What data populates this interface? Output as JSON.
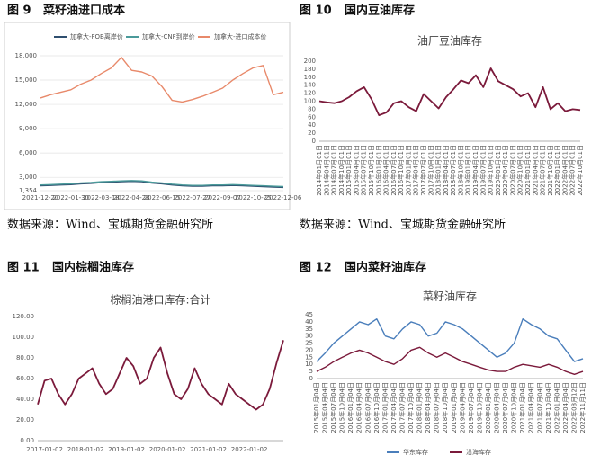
{
  "chart_data": [
    {
      "type": "line",
      "caption_number": "图 9",
      "caption": "菜籽油进口成本",
      "source": "数据来源：Wind、宝城期货金融研究所",
      "legend": "top",
      "grid": true,
      "frame": true,
      "categories": [
        "2021-12-20",
        null,
        null,
        "2022-01-30",
        null,
        null,
        "2022-03-18",
        null,
        null,
        "2022-04-28",
        null,
        null,
        "2022-06-15",
        null,
        null,
        "2022-07-27",
        null,
        null,
        "2022-09-07",
        null,
        null,
        "2022-10-25",
        null,
        null,
        "2022-12-06"
      ],
      "ylim": [
        1354,
        18000
      ],
      "yticks": [
        {
          "value": 1354,
          "label": "1,354"
        },
        {
          "value": 3000,
          "label": "3,000"
        },
        {
          "value": 6000,
          "label": "6,000"
        },
        {
          "value": 9000,
          "label": "9,000"
        },
        {
          "value": 12000,
          "label": "12,000"
        },
        {
          "value": 15000,
          "label": "15,000"
        },
        {
          "value": 18000,
          "label": "18,000"
        }
      ],
      "series": [
        {
          "name": "加拿大-FOB离岸价",
          "color": "#2f4f6f",
          "values": [
            1950,
            2000,
            2050,
            2100,
            2200,
            2250,
            2350,
            2400,
            2450,
            2500,
            2450,
            2300,
            2200,
            2050,
            1950,
            1900,
            1900,
            1950,
            1950,
            2000,
            1950,
            1900,
            1850,
            1800,
            1750
          ]
        },
        {
          "name": "加拿大-CNF到岸价",
          "color": "#4a9a9a",
          "values": [
            2050,
            2100,
            2150,
            2200,
            2300,
            2350,
            2450,
            2500,
            2550,
            2600,
            2550,
            2400,
            2300,
            2150,
            2050,
            2000,
            2000,
            2050,
            2050,
            2100,
            2050,
            2000,
            1950,
            1900,
            1850
          ]
        },
        {
          "name": "加拿大-进口成本价",
          "color": "#e8896a",
          "values": [
            12800,
            13200,
            13500,
            13800,
            14500,
            15000,
            15800,
            16500,
            17800,
            16200,
            16000,
            15500,
            14200,
            12500,
            12300,
            12600,
            13000,
            13500,
            14000,
            15000,
            15800,
            16500,
            16800,
            13200,
            13500
          ]
        }
      ]
    },
    {
      "type": "line",
      "caption_number": "图 10",
      "caption": "国内豆油库存",
      "source": "数据来源：Wind、宝城期货金融研究所",
      "title": "油厂豆油库存",
      "grid": false,
      "categories": [
        "2014年01月01日",
        "2014年04月01日",
        "2014年07月01日",
        "2014年10月01日",
        "2015年01月01日",
        "2015年04月01日",
        "2015年07月01日",
        "2015年10月01日",
        "2016年01月01日",
        "2016年04月01日",
        "2016年07月01日",
        "2016年10月01日",
        "2017年01月01日",
        "2017年04月01日",
        "2017年07月01日",
        "2017年10月01日",
        "2018年01月01日",
        "2018年04月01日",
        "2018年07月01日",
        "2018年10月01日",
        "2019年01月01日",
        "2019年04月01日",
        "2019年07月01日",
        "2019年10月01日",
        "2020年01月01日",
        "2020年04月01日",
        "2020年07月01日",
        "2020年10月01日",
        "2021年01月01日",
        "2021年04月01日",
        "2021年07月01日",
        "2021年10月01日",
        "2022年01月01日",
        "2022年04月01日",
        "2022年07月01日",
        "2022年10月01日"
      ],
      "ylim": [
        0,
        200
      ],
      "yticks": [
        0,
        20,
        40,
        60,
        80,
        100,
        120,
        140,
        160,
        180,
        200
      ],
      "series": [
        {
          "name": "油厂豆油库存",
          "color": "#7b1a3b",
          "values": [
            100,
            97,
            95,
            100,
            110,
            125,
            135,
            105,
            65,
            72,
            95,
            100,
            85,
            75,
            118,
            100,
            82,
            110,
            130,
            152,
            145,
            165,
            135,
            182,
            150,
            140,
            130,
            112,
            120,
            85,
            135,
            80,
            95,
            75,
            80,
            78
          ]
        }
      ]
    },
    {
      "type": "line",
      "caption_number": "图 11",
      "caption": "国内棕榈油库存",
      "title": "棕榈油港口库存:合计",
      "grid": false,
      "categories": [
        null,
        "2017-01-02",
        null,
        null,
        null,
        null,
        null,
        "2018-01-02",
        null,
        null,
        null,
        null,
        null,
        "2019-01-02",
        null,
        null,
        null,
        null,
        null,
        "2020-01-02",
        null,
        null,
        null,
        null,
        null,
        "2021-01-02",
        null,
        null,
        null,
        null,
        null,
        "2022-01-02",
        null,
        null,
        null,
        null,
        null
      ],
      "ylim": [
        0,
        120
      ],
      "yticks": [
        {
          "value": 0,
          "label": "0.00"
        },
        {
          "value": 20,
          "label": "20.00"
        },
        {
          "value": 40,
          "label": "40.00"
        },
        {
          "value": 60,
          "label": "60.00"
        },
        {
          "value": 80,
          "label": "80.00"
        },
        {
          "value": 100,
          "label": "100.00"
        },
        {
          "value": 120,
          "label": "120.00"
        }
      ],
      "series": [
        {
          "name": "棕榈油港口库存:合计",
          "color": "#7b1a3b",
          "values": [
            35,
            58,
            60,
            45,
            35,
            45,
            60,
            65,
            70,
            55,
            45,
            50,
            65,
            80,
            72,
            55,
            60,
            80,
            90,
            65,
            45,
            40,
            50,
            70,
            55,
            45,
            40,
            35,
            55,
            45,
            40,
            35,
            30,
            35,
            50,
            75,
            97
          ]
        }
      ]
    },
    {
      "type": "line",
      "caption_number": "图 12",
      "caption": "国内菜籽油库存",
      "title": "菜籽油库存",
      "legend": "bottom",
      "grid": false,
      "categories": [
        "2015年01月04日",
        "2015年04月04日",
        "2015年07月04日",
        "2015年10月04日",
        "2016年01月04日",
        "2016年04月04日",
        "2016年07月04日",
        "2016年10月04日",
        "2017年01月04日",
        "2017年04月04日",
        "2017年07月04日",
        "2017年10月04日",
        "2018年01月04日",
        "2018年04月04日",
        "2018年07月04日",
        "2018年10月04日",
        "2019年01月04日",
        "2019年04月04日",
        "2019年07月04日",
        "2019年10月04日",
        "2020年01月04日",
        "2020年04月04日",
        "2020年07月04日",
        "2020年10月04日",
        "2021年01月04日",
        "2021年04月04日",
        "2021年07月04日",
        "2021年10月04日",
        "2022年01月04日",
        "2022年04月04日",
        "2022年08月12日",
        "2022年11月11日"
      ],
      "ylim": [
        0,
        45
      ],
      "yticks": [
        0,
        5,
        10,
        15,
        20,
        25,
        30,
        35,
        40,
        45
      ],
      "series": [
        {
          "name": "华东库存",
          "color": "#4a7ebb",
          "values": [
            12,
            18,
            25,
            30,
            35,
            40,
            38,
            42,
            30,
            28,
            35,
            40,
            38,
            30,
            32,
            40,
            38,
            35,
            30,
            25,
            20,
            15,
            18,
            25,
            42,
            38,
            35,
            30,
            28,
            20,
            12,
            14
          ]
        },
        {
          "name": "沿海库存",
          "color": "#7b1a3b",
          "values": [
            5,
            8,
            12,
            15,
            18,
            20,
            18,
            15,
            12,
            10,
            14,
            20,
            22,
            18,
            15,
            18,
            15,
            12,
            10,
            8,
            6,
            5,
            5,
            8,
            10,
            9,
            8,
            10,
            8,
            5,
            3,
            5
          ]
        }
      ]
    }
  ]
}
